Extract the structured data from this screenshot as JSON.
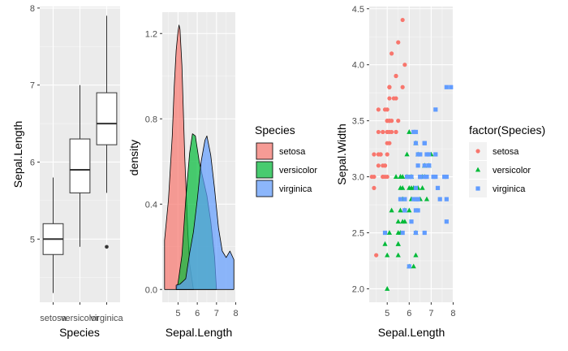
{
  "chart_data": [
    {
      "type": "box",
      "id": "boxplot",
      "xlabel": "Species",
      "ylabel": "Sepal.Length",
      "categories": [
        "setosa",
        "versicolor",
        "virginica"
      ],
      "ylim": [
        4.18,
        8.02
      ],
      "yticks": [
        5,
        6,
        7,
        8
      ],
      "boxes": [
        {
          "category": "setosa",
          "min": 4.3,
          "q1": 4.8,
          "median": 5.0,
          "q3": 5.2,
          "max": 5.8,
          "outliers": []
        },
        {
          "category": "versicolor",
          "min": 4.9,
          "q1": 5.6,
          "median": 5.9,
          "q3": 6.3,
          "max": 7.0,
          "outliers": []
        },
        {
          "category": "virginica",
          "min": 5.6,
          "q1": 6.225,
          "median": 6.5,
          "q3": 6.9,
          "max": 7.9,
          "outliers": [
            4.9
          ]
        }
      ]
    },
    {
      "type": "area",
      "id": "density",
      "xlabel": "Sepal.Length",
      "ylabel": "density",
      "xlim": [
        4.18,
        8.02
      ],
      "ylim": [
        -0.06,
        1.3
      ],
      "xticks": [
        5,
        6,
        7,
        8
      ],
      "yticks": [
        0.0,
        0.4,
        0.8,
        1.2
      ],
      "yticklabels": [
        "0.0",
        "0.4",
        "0.8",
        "1.2"
      ],
      "legend": {
        "title": "Species",
        "position": "right"
      },
      "series": [
        {
          "name": "setosa",
          "color": "#F8766D",
          "x": [
            4.3,
            4.5,
            4.7,
            4.8,
            4.9,
            5.0,
            5.05,
            5.1,
            5.2,
            5.35,
            5.5,
            5.6,
            5.8
          ],
          "y": [
            0.23,
            0.42,
            0.72,
            0.95,
            1.12,
            1.21,
            1.24,
            1.22,
            1.05,
            0.62,
            0.28,
            0.12,
            0.0
          ]
        },
        {
          "name": "versicolor",
          "color": "#00BA38",
          "x": [
            4.9,
            5.0,
            5.2,
            5.4,
            5.6,
            5.75,
            5.9,
            6.1,
            6.3,
            6.5,
            6.7,
            6.9,
            7.0
          ],
          "y": [
            0.0,
            0.03,
            0.16,
            0.42,
            0.64,
            0.73,
            0.72,
            0.6,
            0.52,
            0.44,
            0.32,
            0.15,
            0.0
          ]
        },
        {
          "name": "virginica",
          "color": "#619CFF",
          "x": [
            4.9,
            5.1,
            5.4,
            5.6,
            5.8,
            6.0,
            6.2,
            6.4,
            6.5,
            6.7,
            6.9,
            7.1,
            7.3,
            7.5,
            7.7,
            7.9
          ],
          "y": [
            0.02,
            0.025,
            0.05,
            0.17,
            0.27,
            0.42,
            0.6,
            0.7,
            0.72,
            0.63,
            0.47,
            0.29,
            0.18,
            0.15,
            0.18,
            0.14
          ]
        }
      ]
    },
    {
      "type": "scatter",
      "id": "scatter",
      "xlabel": "Sepal.Length",
      "ylabel": "Sepal.Width",
      "xlim": [
        4.18,
        8.02
      ],
      "ylim": [
        1.88,
        4.52
      ],
      "xticks": [
        5,
        6,
        7,
        8
      ],
      "yticks": [
        2.0,
        2.5,
        3.0,
        3.5,
        4.0,
        4.5
      ],
      "yticklabels": [
        "2.0",
        "2.5",
        "3.0",
        "3.5",
        "4.0",
        "4.5"
      ],
      "legend": {
        "title": "factor(Species)",
        "position": "right"
      },
      "series": [
        {
          "name": "setosa",
          "shape": "circle",
          "color": "#F8766D",
          "points": [
            [
              5.1,
              3.5
            ],
            [
              4.9,
              3.0
            ],
            [
              4.7,
              3.2
            ],
            [
              4.6,
              3.1
            ],
            [
              5.0,
              3.6
            ],
            [
              5.4,
              3.9
            ],
            [
              4.6,
              3.4
            ],
            [
              5.0,
              3.4
            ],
            [
              4.4,
              2.9
            ],
            [
              4.9,
              3.1
            ],
            [
              5.4,
              3.7
            ],
            [
              4.8,
              3.4
            ],
            [
              4.8,
              3.0
            ],
            [
              4.3,
              3.0
            ],
            [
              5.8,
              4.0
            ],
            [
              5.7,
              4.4
            ],
            [
              5.4,
              3.9
            ],
            [
              5.1,
              3.5
            ],
            [
              5.7,
              3.8
            ],
            [
              5.1,
              3.8
            ],
            [
              5.4,
              3.4
            ],
            [
              5.1,
              3.7
            ],
            [
              4.6,
              3.6
            ],
            [
              5.1,
              3.3
            ],
            [
              4.8,
              3.4
            ],
            [
              5.0,
              3.0
            ],
            [
              5.0,
              3.4
            ],
            [
              5.2,
              3.5
            ],
            [
              5.2,
              3.4
            ],
            [
              4.7,
              3.2
            ],
            [
              4.8,
              3.1
            ],
            [
              5.4,
              3.4
            ],
            [
              5.2,
              4.1
            ],
            [
              5.5,
              4.2
            ],
            [
              4.9,
              3.1
            ],
            [
              5.0,
              3.2
            ],
            [
              5.5,
              3.5
            ],
            [
              4.9,
              3.6
            ],
            [
              4.4,
              3.0
            ],
            [
              5.1,
              3.4
            ],
            [
              5.0,
              3.5
            ],
            [
              4.5,
              2.3
            ],
            [
              4.4,
              3.2
            ],
            [
              5.0,
              3.5
            ],
            [
              5.1,
              3.8
            ],
            [
              4.8,
              3.0
            ],
            [
              5.1,
              3.8
            ],
            [
              4.6,
              3.2
            ],
            [
              5.3,
              3.7
            ],
            [
              5.0,
              3.3
            ]
          ]
        },
        {
          "name": "versicolor",
          "shape": "triangle",
          "color": "#00BA38",
          "points": [
            [
              7.0,
              3.2
            ],
            [
              6.4,
              3.2
            ],
            [
              6.9,
              3.1
            ],
            [
              5.5,
              2.3
            ],
            [
              6.5,
              2.8
            ],
            [
              5.7,
              2.8
            ],
            [
              6.3,
              3.3
            ],
            [
              4.9,
              2.4
            ],
            [
              6.6,
              2.9
            ],
            [
              5.2,
              2.7
            ],
            [
              5.0,
              2.0
            ],
            [
              5.9,
              3.0
            ],
            [
              6.0,
              2.2
            ],
            [
              6.1,
              2.9
            ],
            [
              5.6,
              2.9
            ],
            [
              6.7,
              3.1
            ],
            [
              5.6,
              3.0
            ],
            [
              5.8,
              2.7
            ],
            [
              6.2,
              2.2
            ],
            [
              5.6,
              2.5
            ],
            [
              5.9,
              3.2
            ],
            [
              6.1,
              2.8
            ],
            [
              6.3,
              2.5
            ],
            [
              6.1,
              2.8
            ],
            [
              6.4,
              2.9
            ],
            [
              6.6,
              3.0
            ],
            [
              6.8,
              2.8
            ],
            [
              6.7,
              3.0
            ],
            [
              6.0,
              2.9
            ],
            [
              5.7,
              2.6
            ],
            [
              5.5,
              2.4
            ],
            [
              5.5,
              2.4
            ],
            [
              5.8,
              2.7
            ],
            [
              6.0,
              2.7
            ],
            [
              5.4,
              3.0
            ],
            [
              6.0,
              3.4
            ],
            [
              6.7,
              3.1
            ],
            [
              6.3,
              2.3
            ],
            [
              5.6,
              3.0
            ],
            [
              5.5,
              2.5
            ],
            [
              5.5,
              2.6
            ],
            [
              6.1,
              3.0
            ],
            [
              5.8,
              2.6
            ],
            [
              5.0,
              2.3
            ],
            [
              5.6,
              2.7
            ],
            [
              5.7,
              3.0
            ],
            [
              5.7,
              2.9
            ],
            [
              6.2,
              2.9
            ],
            [
              5.1,
              2.5
            ],
            [
              5.7,
              2.8
            ]
          ]
        },
        {
          "name": "virginica",
          "shape": "square",
          "color": "#619CFF",
          "points": [
            [
              6.3,
              3.3
            ],
            [
              5.8,
              2.7
            ],
            [
              7.1,
              3.0
            ],
            [
              6.3,
              2.9
            ],
            [
              6.5,
              3.0
            ],
            [
              7.6,
              3.0
            ],
            [
              4.9,
              2.5
            ],
            [
              7.3,
              2.9
            ],
            [
              6.7,
              2.5
            ],
            [
              7.2,
              3.6
            ],
            [
              6.5,
              3.2
            ],
            [
              6.4,
              2.7
            ],
            [
              6.8,
              3.0
            ],
            [
              5.7,
              2.5
            ],
            [
              5.8,
              2.8
            ],
            [
              6.4,
              3.2
            ],
            [
              6.5,
              3.0
            ],
            [
              7.7,
              3.8
            ],
            [
              7.7,
              2.6
            ],
            [
              6.0,
              2.2
            ],
            [
              6.9,
              3.2
            ],
            [
              5.6,
              2.8
            ],
            [
              7.7,
              2.8
            ],
            [
              6.3,
              2.7
            ],
            [
              6.7,
              3.3
            ],
            [
              7.2,
              3.2
            ],
            [
              6.2,
              2.8
            ],
            [
              6.1,
              3.0
            ],
            [
              6.4,
              2.8
            ],
            [
              7.2,
              3.0
            ],
            [
              7.4,
              2.8
            ],
            [
              7.9,
              3.8
            ],
            [
              6.4,
              2.8
            ],
            [
              6.3,
              2.8
            ],
            [
              6.1,
              2.6
            ],
            [
              7.7,
              3.0
            ],
            [
              6.3,
              3.4
            ],
            [
              6.4,
              3.1
            ],
            [
              6.0,
              3.0
            ],
            [
              6.9,
              3.1
            ],
            [
              6.7,
              3.1
            ],
            [
              6.9,
              3.1
            ],
            [
              5.8,
              2.7
            ],
            [
              6.8,
              3.2
            ],
            [
              6.7,
              3.3
            ],
            [
              6.7,
              3.0
            ],
            [
              6.3,
              2.5
            ],
            [
              6.5,
              3.0
            ],
            [
              6.2,
              3.4
            ],
            [
              5.9,
              3.0
            ]
          ]
        }
      ]
    }
  ]
}
